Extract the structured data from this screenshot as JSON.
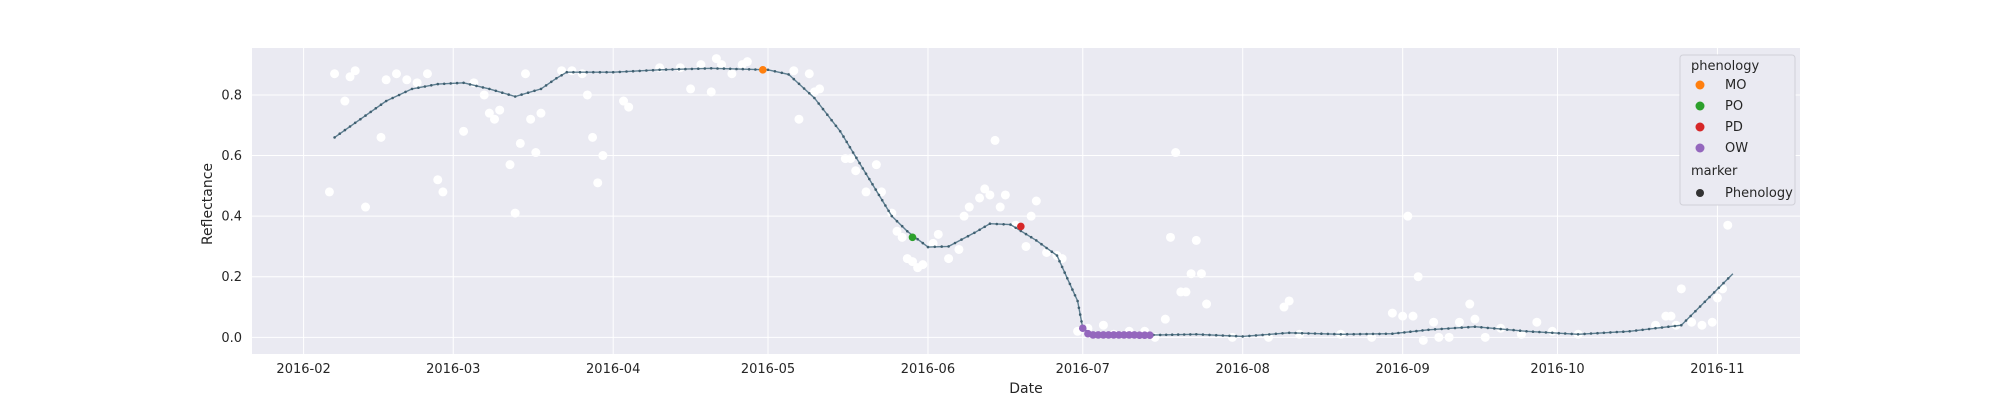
{
  "chart_data": {
    "type": "scatter",
    "title": "",
    "xlabel": "Date",
    "ylabel": "Reflectance",
    "xlim": [
      "2016-01-22",
      "2016-11-17"
    ],
    "ylim": [
      -0.055,
      0.955
    ],
    "x_ticks": [
      "2016-02",
      "2016-03",
      "2016-04",
      "2016-05",
      "2016-06",
      "2016-07",
      "2016-08",
      "2016-09",
      "2016-10",
      "2016-11"
    ],
    "y_ticks": [
      "0.0",
      "0.2",
      "0.4",
      "0.6",
      "0.8"
    ],
    "grid": true,
    "legend_placement": "top-right",
    "legend": {
      "title": "phenology",
      "entries": [
        {
          "label": "MO",
          "color": "#ff7f0e"
        },
        {
          "label": "PO",
          "color": "#2ca02c"
        },
        {
          "label": "PD",
          "color": "#d62728"
        },
        {
          "label": "OW",
          "color": "#9467bd"
        }
      ],
      "marker_title": "marker",
      "marker_entries": [
        {
          "label": "Phenology",
          "color": "#333333"
        }
      ]
    },
    "series": [
      {
        "kind": "raw-points",
        "color": "#ffffff",
        "points": [
          [
            "2016-02-06",
            0.48
          ],
          [
            "2016-02-07",
            0.87
          ],
          [
            "2016-02-09",
            0.78
          ],
          [
            "2016-02-10",
            0.86
          ],
          [
            "2016-02-11",
            0.88
          ],
          [
            "2016-02-13",
            0.43
          ],
          [
            "2016-02-16",
            0.66
          ],
          [
            "2016-02-17",
            0.85
          ],
          [
            "2016-02-19",
            0.87
          ],
          [
            "2016-02-21",
            0.85
          ],
          [
            "2016-02-23",
            0.84
          ],
          [
            "2016-02-25",
            0.87
          ],
          [
            "2016-02-27",
            0.52
          ],
          [
            "2016-02-28",
            0.48
          ],
          [
            "2016-03-03",
            0.68
          ],
          [
            "2016-03-05",
            0.84
          ],
          [
            "2016-03-07",
            0.8
          ],
          [
            "2016-03-08",
            0.74
          ],
          [
            "2016-03-09",
            0.72
          ],
          [
            "2016-03-10",
            0.75
          ],
          [
            "2016-03-12",
            0.57
          ],
          [
            "2016-03-13",
            0.41
          ],
          [
            "2016-03-14",
            0.64
          ],
          [
            "2016-03-15",
            0.87
          ],
          [
            "2016-03-16",
            0.72
          ],
          [
            "2016-03-17",
            0.61
          ],
          [
            "2016-03-18",
            0.74
          ],
          [
            "2016-03-22",
            0.88
          ],
          [
            "2016-03-24",
            0.88
          ],
          [
            "2016-03-26",
            0.87
          ],
          [
            "2016-03-27",
            0.8
          ],
          [
            "2016-03-28",
            0.66
          ],
          [
            "2016-03-29",
            0.51
          ],
          [
            "2016-03-30",
            0.6
          ],
          [
            "2016-04-03",
            0.78
          ],
          [
            "2016-04-04",
            0.76
          ],
          [
            "2016-04-10",
            0.89
          ],
          [
            "2016-04-14",
            0.89
          ],
          [
            "2016-04-16",
            0.82
          ],
          [
            "2016-04-18",
            0.9
          ],
          [
            "2016-04-20",
            0.81
          ],
          [
            "2016-04-21",
            0.92
          ],
          [
            "2016-04-22",
            0.9
          ],
          [
            "2016-04-24",
            0.87
          ],
          [
            "2016-04-26",
            0.9
          ],
          [
            "2016-04-27",
            0.91
          ],
          [
            "2016-05-06",
            0.88
          ],
          [
            "2016-05-07",
            0.72
          ],
          [
            "2016-05-09",
            0.87
          ],
          [
            "2016-05-10",
            0.81
          ],
          [
            "2016-05-11",
            0.82
          ],
          [
            "2016-05-16",
            0.59
          ],
          [
            "2016-05-17",
            0.59
          ],
          [
            "2016-05-18",
            0.55
          ],
          [
            "2016-05-20",
            0.48
          ],
          [
            "2016-05-22",
            0.57
          ],
          [
            "2016-05-23",
            0.48
          ],
          [
            "2016-05-25",
            0.41
          ],
          [
            "2016-05-26",
            0.35
          ],
          [
            "2016-05-27",
            0.33
          ],
          [
            "2016-05-28",
            0.26
          ],
          [
            "2016-05-29",
            0.25
          ],
          [
            "2016-05-30",
            0.23
          ],
          [
            "2016-05-31",
            0.24
          ],
          [
            "2016-06-02",
            0.31
          ],
          [
            "2016-06-03",
            0.34
          ],
          [
            "2016-06-05",
            0.26
          ],
          [
            "2016-06-07",
            0.29
          ],
          [
            "2016-06-08",
            0.4
          ],
          [
            "2016-06-09",
            0.43
          ],
          [
            "2016-06-11",
            0.46
          ],
          [
            "2016-06-12",
            0.49
          ],
          [
            "2016-06-13",
            0.47
          ],
          [
            "2016-06-14",
            0.65
          ],
          [
            "2016-06-15",
            0.43
          ],
          [
            "2016-06-16",
            0.47
          ],
          [
            "2016-06-18",
            0.37
          ],
          [
            "2016-06-20",
            0.3
          ],
          [
            "2016-06-21",
            0.4
          ],
          [
            "2016-06-22",
            0.45
          ],
          [
            "2016-06-24",
            0.28
          ],
          [
            "2016-06-26",
            0.27
          ],
          [
            "2016-06-27",
            0.26
          ],
          [
            "2016-06-30",
            0.02
          ],
          [
            "2016-07-02",
            0.03
          ],
          [
            "2016-07-05",
            0.04
          ],
          [
            "2016-07-07",
            0.01
          ],
          [
            "2016-07-10",
            0.02
          ],
          [
            "2016-07-13",
            0.02
          ],
          [
            "2016-07-15",
            0.0
          ],
          [
            "2016-07-17",
            0.06
          ],
          [
            "2016-07-18",
            0.33
          ],
          [
            "2016-07-19",
            0.61
          ],
          [
            "2016-07-20",
            0.15
          ],
          [
            "2016-07-21",
            0.15
          ],
          [
            "2016-07-22",
            0.21
          ],
          [
            "2016-07-23",
            0.32
          ],
          [
            "2016-07-24",
            0.21
          ],
          [
            "2016-07-25",
            0.11
          ],
          [
            "2016-07-30",
            0.0
          ],
          [
            "2016-08-06",
            0.0
          ],
          [
            "2016-08-09",
            0.1
          ],
          [
            "2016-08-10",
            0.12
          ],
          [
            "2016-08-12",
            0.01
          ],
          [
            "2016-08-20",
            0.01
          ],
          [
            "2016-08-26",
            0.0
          ],
          [
            "2016-08-30",
            0.08
          ],
          [
            "2016-09-01",
            0.07
          ],
          [
            "2016-09-02",
            0.4
          ],
          [
            "2016-09-03",
            0.07
          ],
          [
            "2016-09-04",
            0.2
          ],
          [
            "2016-09-05",
            -0.01
          ],
          [
            "2016-09-07",
            0.05
          ],
          [
            "2016-09-08",
            0.0
          ],
          [
            "2016-09-10",
            0.0
          ],
          [
            "2016-09-12",
            0.05
          ],
          [
            "2016-09-14",
            0.11
          ],
          [
            "2016-09-15",
            0.06
          ],
          [
            "2016-09-17",
            0.0
          ],
          [
            "2016-09-20",
            0.03
          ],
          [
            "2016-09-24",
            0.01
          ],
          [
            "2016-09-27",
            0.05
          ],
          [
            "2016-09-30",
            0.02
          ],
          [
            "2016-10-05",
            0.01
          ],
          [
            "2016-10-20",
            0.04
          ],
          [
            "2016-10-22",
            0.07
          ],
          [
            "2016-10-23",
            0.07
          ],
          [
            "2016-10-24",
            0.04
          ],
          [
            "2016-10-25",
            0.16
          ],
          [
            "2016-10-27",
            0.05
          ],
          [
            "2016-10-29",
            0.04
          ],
          [
            "2016-10-31",
            0.05
          ],
          [
            "2016-11-01",
            0.13
          ],
          [
            "2016-11-02",
            0.16
          ],
          [
            "2016-11-03",
            0.37
          ]
        ]
      },
      {
        "kind": "fitted-line",
        "color": "#5e7f91",
        "points": [
          [
            "2016-02-07",
            0.66
          ],
          [
            "2016-02-12",
            0.72
          ],
          [
            "2016-02-17",
            0.78
          ],
          [
            "2016-02-22",
            0.82
          ],
          [
            "2016-02-27",
            0.836
          ],
          [
            "2016-03-03",
            0.84
          ],
          [
            "2016-03-08",
            0.82
          ],
          [
            "2016-03-13",
            0.795
          ],
          [
            "2016-03-18",
            0.82
          ],
          [
            "2016-03-21",
            0.855
          ],
          [
            "2016-03-23",
            0.875
          ],
          [
            "2016-04-01",
            0.875
          ],
          [
            "2016-04-10",
            0.883
          ],
          [
            "2016-04-20",
            0.888
          ],
          [
            "2016-05-01",
            0.883
          ],
          [
            "2016-05-05",
            0.868
          ],
          [
            "2016-05-10",
            0.79
          ],
          [
            "2016-05-15",
            0.68
          ],
          [
            "2016-05-20",
            0.54
          ],
          [
            "2016-05-25",
            0.4
          ],
          [
            "2016-05-28",
            0.35
          ],
          [
            "2016-06-01",
            0.298
          ],
          [
            "2016-06-05",
            0.3
          ],
          [
            "2016-06-10",
            0.345
          ],
          [
            "2016-06-13",
            0.375
          ],
          [
            "2016-06-17",
            0.372
          ],
          [
            "2016-06-22",
            0.32
          ],
          [
            "2016-06-26",
            0.27
          ],
          [
            "2016-06-28",
            0.195
          ],
          [
            "2016-06-30",
            0.12
          ],
          [
            "2016-07-01",
            0.03
          ],
          [
            "2016-07-03",
            0.008
          ],
          [
            "2016-07-16",
            0.008
          ],
          [
            "2016-07-23",
            0.01
          ],
          [
            "2016-08-01",
            0.003
          ],
          [
            "2016-08-10",
            0.015
          ],
          [
            "2016-08-20",
            0.01
          ],
          [
            "2016-08-30",
            0.012
          ],
          [
            "2016-09-06",
            0.025
          ],
          [
            "2016-09-15",
            0.035
          ],
          [
            "2016-09-25",
            0.02
          ],
          [
            "2016-10-05",
            0.01
          ],
          [
            "2016-10-15",
            0.02
          ],
          [
            "2016-10-25",
            0.04
          ],
          [
            "2016-11-04",
            0.21
          ]
        ]
      },
      {
        "kind": "phenology-points",
        "points": [
          {
            "phase": "MO",
            "date": "2016-04-30",
            "value": 0.883
          },
          {
            "phase": "PO",
            "date": "2016-05-29",
            "value": 0.33
          },
          {
            "phase": "PD",
            "date": "2016-06-19",
            "value": 0.366
          },
          {
            "phase": "OW",
            "date": "2016-07-01",
            "value": 0.03
          },
          {
            "phase": "OW",
            "date": "2016-07-02",
            "value": 0.012
          },
          {
            "phase": "OW",
            "date": "2016-07-03",
            "value": 0.008
          },
          {
            "phase": "OW",
            "date": "2016-07-04",
            "value": 0.008
          },
          {
            "phase": "OW",
            "date": "2016-07-05",
            "value": 0.008
          },
          {
            "phase": "OW",
            "date": "2016-07-06",
            "value": 0.008
          },
          {
            "phase": "OW",
            "date": "2016-07-07",
            "value": 0.008
          },
          {
            "phase": "OW",
            "date": "2016-07-08",
            "value": 0.008
          },
          {
            "phase": "OW",
            "date": "2016-07-09",
            "value": 0.008
          },
          {
            "phase": "OW",
            "date": "2016-07-10",
            "value": 0.008
          },
          {
            "phase": "OW",
            "date": "2016-07-11",
            "value": 0.008
          },
          {
            "phase": "OW",
            "date": "2016-07-12",
            "value": 0.007
          },
          {
            "phase": "OW",
            "date": "2016-07-13",
            "value": 0.007
          },
          {
            "phase": "OW",
            "date": "2016-07-14",
            "value": 0.007
          }
        ]
      }
    ]
  },
  "colors": {
    "plot_background": "#eaeaf2",
    "grid": "#ffffff",
    "text": "#262626"
  }
}
